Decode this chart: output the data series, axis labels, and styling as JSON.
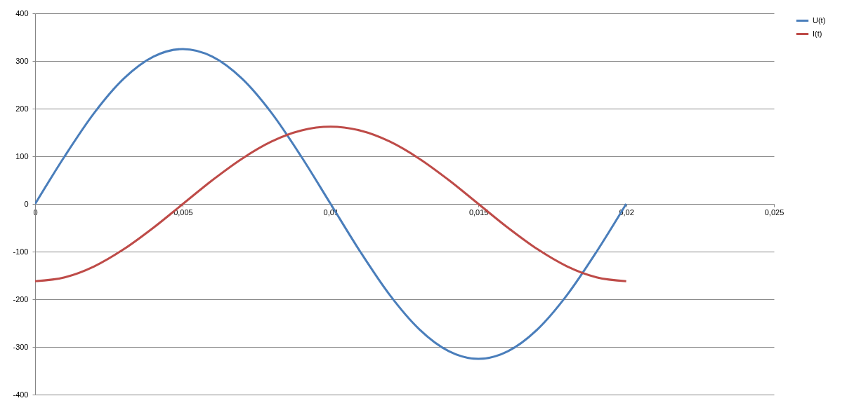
{
  "chart_data": {
    "type": "line",
    "x": [
      0,
      0.001,
      0.002,
      0.003,
      0.004,
      0.005,
      0.006,
      0.007,
      0.008,
      0.009,
      0.01,
      0.011,
      0.012,
      0.013,
      0.014,
      0.015,
      0.016,
      0.017,
      0.018,
      0.019,
      0.02
    ],
    "series": [
      {
        "name": "U(t)",
        "color": "#4a7ebb",
        "values": [
          0,
          100,
          191,
          263,
          309,
          325,
          309,
          263,
          191,
          100,
          0,
          -100,
          -191,
          -263,
          -309,
          -325,
          -309,
          -263,
          -191,
          -100,
          0
        ]
      },
      {
        "name": "I(t)",
        "color": "#be4b48",
        "values": [
          -162,
          -154,
          -131,
          -95,
          -50,
          0,
          50,
          95,
          131,
          154,
          162,
          154,
          131,
          95,
          50,
          0,
          -50,
          -95,
          -131,
          -154,
          -162
        ]
      }
    ],
    "xlim": [
      0,
      0.025
    ],
    "xticks": [
      0,
      {
        "value": 0.005,
        "label": "0,005"
      },
      {
        "value": 0.01,
        "label": "0,01"
      },
      {
        "value": 0.015,
        "label": "0,015"
      },
      {
        "value": 0.02,
        "label": "0,02"
      },
      {
        "value": 0.025,
        "label": "0,025"
      }
    ],
    "ylim": [
      -400,
      400
    ],
    "yticks": [
      -400,
      -300,
      -200,
      -100,
      0,
      100,
      200,
      300,
      400
    ],
    "grid": "y",
    "legend": "right",
    "marker": "none",
    "line_style": "solid"
  }
}
